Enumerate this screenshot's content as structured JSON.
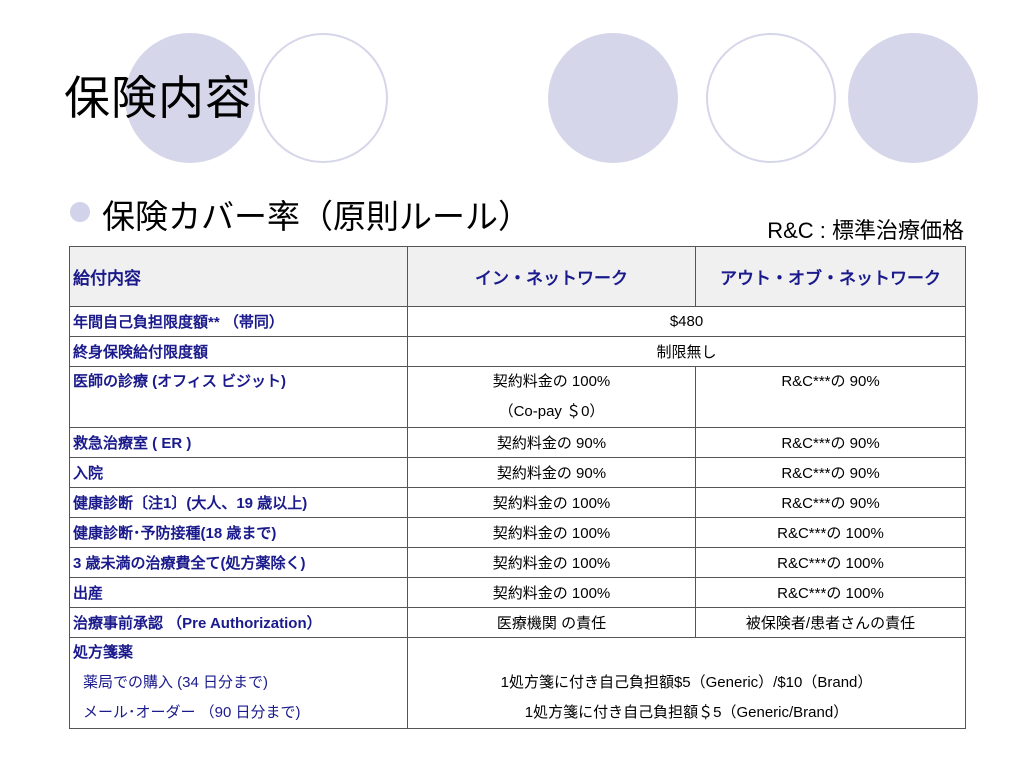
{
  "slide": {
    "title": "保険内容",
    "subtitle": "保険カバー率（原則ルール）",
    "note": "R&C : 標準治療価格"
  },
  "table": {
    "headers": [
      "給付内容",
      "イン・ネットワーク",
      "アウト・オブ・ネットワーク"
    ],
    "rows": {
      "annual_limit": {
        "label": "年間自己負担限度額** （帯同）",
        "value": "$480"
      },
      "lifetime_limit": {
        "label": "終身保険給付限度額",
        "value": "制限無し"
      },
      "office_visit": {
        "label": "医師の診療 (オフィス ビジット)",
        "in1": "契約料金の 100%",
        "in2": "（Co-pay ＄0）",
        "out": "R&C***の 90%"
      },
      "er": {
        "label": "救急治療室 ( ER )",
        "in": "契約料金の 90%",
        "out": "R&C***の 90%"
      },
      "hospital": {
        "label": "入院",
        "in": "契約料金の 90%",
        "out": "R&C***の 90%"
      },
      "checkup_adult": {
        "label": "健康診断〔注1〕(大人、19 歳以上)",
        "in": "契約料金の 100%",
        "out": "R&C***の 90%"
      },
      "checkup_child": {
        "label": "健康診断･予防接種(18 歳まで)",
        "in": "契約料金の 100%",
        "out": "R&C***の 100%"
      },
      "under3": {
        "label": "3 歳未満の治療費全て(処方薬除く)",
        "in": "契約料金の 100%",
        "out": "R&C***の 100%"
      },
      "maternity": {
        "label": "出産",
        "in": "契約料金の 100%",
        "out": "R&C***の 100%"
      },
      "preauth": {
        "label": "治療事前承認 （Pre Authorization）",
        "in": "医療機関 の責任",
        "out": "被保険者/患者さんの責任"
      },
      "rx": {
        "label": "処方箋薬",
        "pharmacy_label": "薬局での購入 (34 日分まで)",
        "pharmacy_value": "1処方箋に付き自己負担額$5（Generic）/$10（Brand）",
        "mail_label": "メール･オーダー （90 日分まで)",
        "mail_value": "1処方箋に付き自己負担額＄5（Generic/Brand）"
      }
    }
  }
}
